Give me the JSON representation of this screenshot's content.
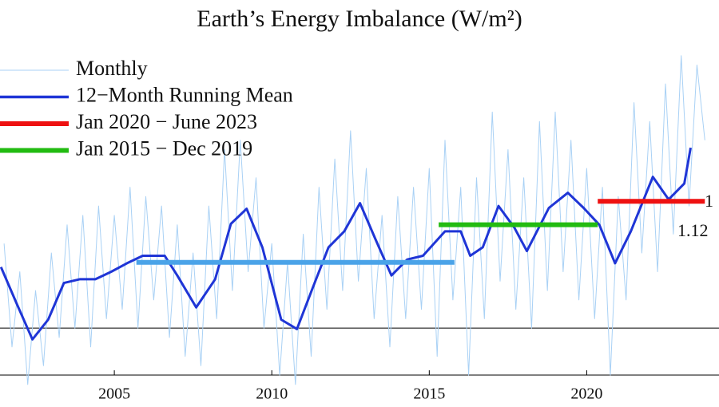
{
  "chart_data": {
    "type": "line",
    "title": "Earth’s Energy Imbalance (W/m²)",
    "xlim": [
      2001.37,
      2024.2
    ],
    "ylim": [
      -0.5,
      3.0
    ],
    "xticks": [
      2005,
      2010,
      2015,
      2020
    ],
    "hlines": [
      0
    ],
    "legend": "upper left",
    "series": [
      {
        "name": "Monthly",
        "color": "#a9d1f5",
        "width": 1,
        "x": [
          2001.5,
          2001.75,
          2002.0,
          2002.25,
          2002.5,
          2002.75,
          2003.0,
          2003.25,
          2003.5,
          2003.75,
          2004.0,
          2004.25,
          2004.5,
          2004.75,
          2005.0,
          2005.25,
          2005.5,
          2005.75,
          2006.0,
          2006.25,
          2006.5,
          2006.75,
          2007.0,
          2007.25,
          2007.5,
          2007.75,
          2008.0,
          2008.25,
          2008.5,
          2008.75,
          2009.0,
          2009.25,
          2009.5,
          2009.75,
          2010.0,
          2010.25,
          2010.5,
          2010.75,
          2011.0,
          2011.25,
          2011.5,
          2011.75,
          2012.0,
          2012.25,
          2012.5,
          2012.75,
          2013.0,
          2013.25,
          2013.5,
          2013.75,
          2014.0,
          2014.25,
          2014.5,
          2014.75,
          2015.0,
          2015.25,
          2015.5,
          2015.75,
          2016.0,
          2016.25,
          2016.5,
          2016.75,
          2017.0,
          2017.25,
          2017.5,
          2017.75,
          2018.0,
          2018.25,
          2018.5,
          2018.75,
          2019.0,
          2019.25,
          2019.5,
          2019.75,
          2020.0,
          2020.25,
          2020.5,
          2020.75,
          2021.0,
          2021.25,
          2021.5,
          2021.75,
          2022.0,
          2022.25,
          2022.5,
          2022.75,
          2023.0,
          2023.25,
          2023.5,
          2023.75
        ],
        "values": [
          0.9,
          -0.2,
          0.6,
          -0.6,
          0.4,
          -0.4,
          0.8,
          -0.1,
          1.1,
          0.0,
          1.2,
          -0.2,
          1.3,
          0.1,
          1.2,
          0.2,
          1.5,
          0.0,
          1.4,
          0.3,
          1.3,
          -0.1,
          1.1,
          -0.3,
          0.8,
          -0.4,
          1.3,
          0.1,
          1.9,
          0.4,
          2.0,
          0.6,
          1.6,
          0.0,
          0.9,
          -0.5,
          0.7,
          -0.6,
          1.0,
          -0.3,
          1.5,
          0.2,
          1.8,
          0.4,
          2.1,
          0.5,
          1.7,
          0.1,
          1.2,
          -0.2,
          1.4,
          0.1,
          1.5,
          0.2,
          1.7,
          -0.3,
          2.0,
          0.3,
          1.5,
          -0.5,
          1.6,
          0.1,
          2.3,
          0.5,
          1.9,
          0.2,
          1.6,
          0.0,
          2.2,
          0.4,
          2.3,
          0.6,
          2.0,
          0.3,
          1.7,
          0.1,
          1.5,
          -0.5,
          1.4,
          0.3,
          2.4,
          0.8,
          2.2,
          0.6,
          2.6,
          1.0,
          2.9,
          1.3,
          2.8,
          2.0
        ]
      },
      {
        "name": "12−Month Running Mean",
        "color": "#1f35d6",
        "width": 3,
        "x": [
          2001.4,
          2001.9,
          2002.4,
          2002.9,
          2003.4,
          2003.9,
          2004.4,
          2004.9,
          2005.4,
          2005.9,
          2006.6,
          2007.0,
          2007.6,
          2008.2,
          2008.7,
          2009.2,
          2009.7,
          2010.3,
          2010.8,
          2011.3,
          2011.8,
          2012.3,
          2012.8,
          2013.3,
          2013.8,
          2014.3,
          2014.8,
          2015.5,
          2016.0,
          2016.3,
          2016.7,
          2017.2,
          2017.7,
          2018.1,
          2018.8,
          2019.4,
          2019.9,
          2020.4,
          2020.9,
          2021.4,
          2022.1,
          2022.6,
          2023.1,
          2023.3
        ],
        "values": [
          0.65,
          0.26,
          -0.12,
          0.09,
          0.48,
          0.52,
          0.52,
          0.6,
          0.69,
          0.77,
          0.77,
          0.56,
          0.22,
          0.52,
          1.11,
          1.27,
          0.86,
          0.09,
          -0.01,
          0.43,
          0.86,
          1.03,
          1.33,
          0.94,
          0.56,
          0.73,
          0.77,
          1.03,
          1.03,
          0.77,
          0.86,
          1.3,
          1.07,
          0.82,
          1.28,
          1.44,
          1.28,
          1.1,
          0.69,
          1.03,
          1.61,
          1.37,
          1.54,
          1.92
        ]
      }
    ],
    "segments": [
      {
        "name": "Jan 2020 − June 2023",
        "color": "#ee1111",
        "x": [
          2020.35,
          2023.75
        ],
        "value": 1.35
      },
      {
        "name": "Jan 2015 − Dec 2019",
        "color": "#22bb11",
        "x": [
          2015.3,
          2020.35
        ],
        "value": 1.1
      },
      {
        "color": "#4aa3e8",
        "x": [
          2005.7,
          2015.8
        ],
        "value": 0.7
      }
    ],
    "annotations": [
      "1",
      "1.12"
    ]
  }
}
